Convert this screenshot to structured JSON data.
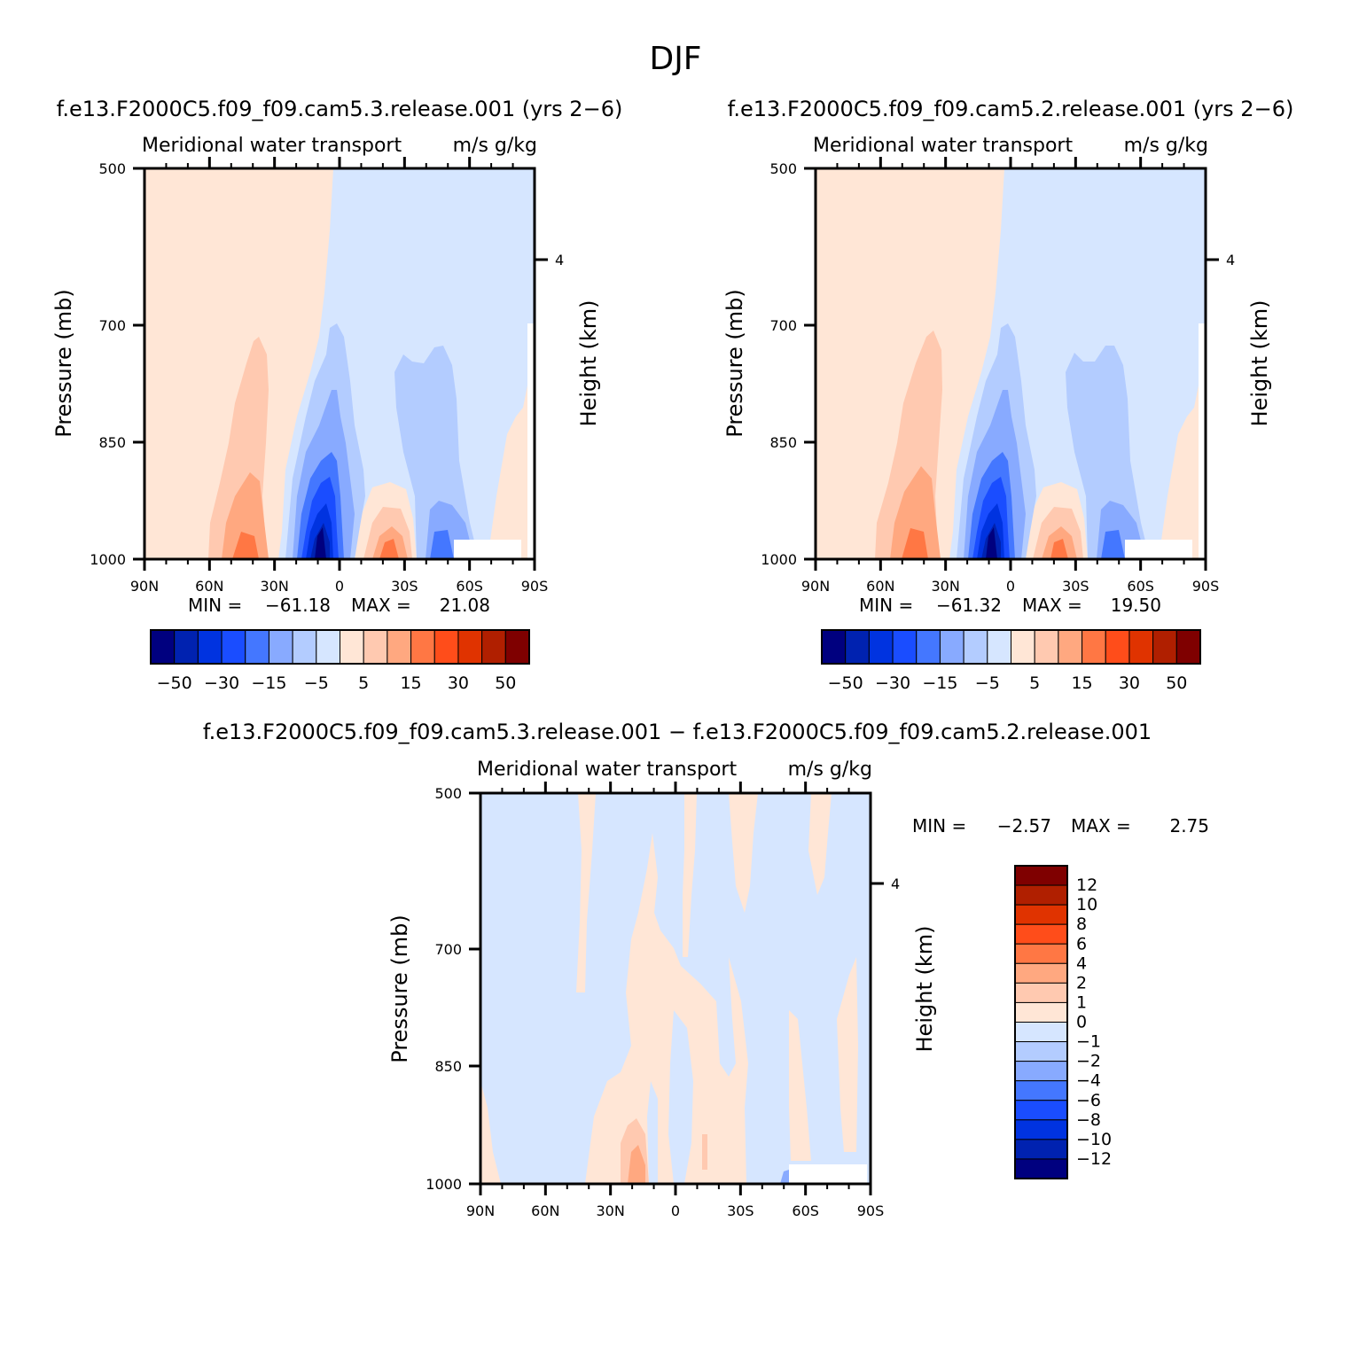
{
  "figure": {
    "title": "DJF"
  },
  "chart_data": [
    {
      "type": "heatmap",
      "case_title": "f.e13.F2000C5.f09_f09.cam5.3.release.001 (yrs 2−6)",
      "subtitle_left": "Meridional water transport",
      "subtitle_right": "m/s g/kg",
      "ylabel": "Pressure (mb)",
      "y2label": "Height (km)",
      "x_ticks": [
        "90N",
        "60N",
        "30N",
        "0",
        "30S",
        "60S",
        "90S"
      ],
      "y_ticks": [
        "500",
        "700",
        "850",
        "1000"
      ],
      "y2_ticks": [
        "4"
      ],
      "stats": {
        "min_label": "MIN =",
        "min": "−61.18",
        "max_label": "MAX =",
        "max": "21.08"
      },
      "colorbar_labels": [
        "−50",
        "−30",
        "−15",
        "−5",
        "5",
        "15",
        "30",
        "50"
      ]
    },
    {
      "type": "heatmap",
      "case_title": "f.e13.F2000C5.f09_f09.cam5.2.release.001 (yrs 2−6)",
      "subtitle_left": "Meridional water transport",
      "subtitle_right": "m/s g/kg",
      "ylabel": "Pressure (mb)",
      "y2label": "Height (km)",
      "x_ticks": [
        "90N",
        "60N",
        "30N",
        "0",
        "30S",
        "60S",
        "90S"
      ],
      "y_ticks": [
        "500",
        "700",
        "850",
        "1000"
      ],
      "y2_ticks": [
        "4"
      ],
      "stats": {
        "min_label": "MIN =",
        "min": "−61.32",
        "max_label": "MAX =",
        "max": "19.50"
      },
      "colorbar_labels": [
        "−50",
        "−30",
        "−15",
        "−5",
        "5",
        "15",
        "30",
        "50"
      ]
    },
    {
      "type": "heatmap",
      "case_title": "f.e13.F2000C5.f09_f09.cam5.3.release.001 − f.e13.F2000C5.f09_f09.cam5.2.release.001",
      "subtitle_left": "Meridional water transport",
      "subtitle_right": "m/s g/kg",
      "ylabel": "Pressure (mb)",
      "y2label": "Height (km)",
      "x_ticks": [
        "90N",
        "60N",
        "30N",
        "0",
        "30S",
        "60S",
        "90S"
      ],
      "y_ticks": [
        "500",
        "700",
        "850",
        "1000"
      ],
      "y2_ticks": [
        "4"
      ],
      "stats": {
        "min_label": "MIN =",
        "min": "−2.57",
        "max_label": "MAX =",
        "max": "2.75"
      },
      "colorbar_labels": [
        "12",
        "10",
        "8",
        "6",
        "4",
        "2",
        "1",
        "0",
        "−1",
        "−2",
        "−4",
        "−6",
        "−8",
        "−10",
        "−12"
      ]
    }
  ],
  "palette": [
    "#00007f",
    "#0022b0",
    "#0033e0",
    "#1a4dff",
    "#4477ff",
    "#88aaff",
    "#b3ccff",
    "#d6e6ff",
    "#ffe6d6",
    "#ffc9b0",
    "#ffa880",
    "#ff7744",
    "#ff4d1a",
    "#e03300",
    "#b01f00",
    "#7f0000"
  ]
}
